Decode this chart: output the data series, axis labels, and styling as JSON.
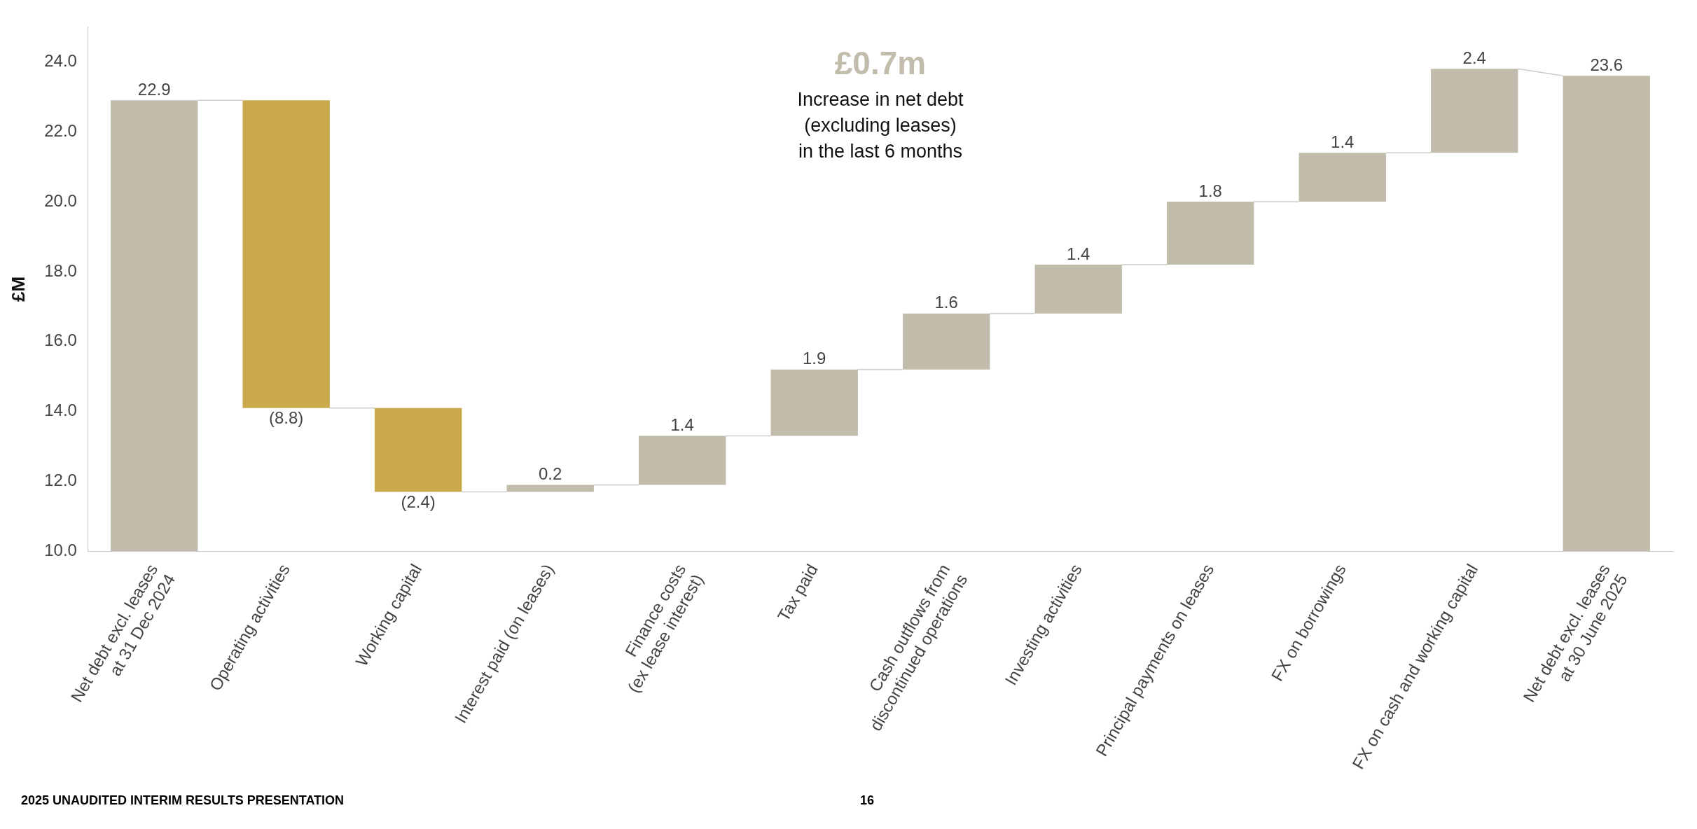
{
  "chart_data": {
    "type": "bar",
    "ylabel": "£M",
    "categories": [
      "Net debt excl. leases\nat 31 Dec 2024",
      "Operating activities",
      "Working capital",
      "Interest paid (on leases)",
      "Finance costs\n(ex lease interest)",
      "Tax paid",
      "Cash outflows from\ndiscontinued operations",
      "Investing activities",
      "Principal payments on leases",
      "FX on borrowings",
      "FX on cash and working capital",
      "Net debt excl. leases\nat 30 June 2025"
    ],
    "base": [
      10,
      22.9,
      14.1,
      11.7,
      11.9,
      13.3,
      15.2,
      16.8,
      18.2,
      20.0,
      21.4,
      10
    ],
    "values": [
      12.9,
      -8.8,
      -2.4,
      0.2,
      1.4,
      1.9,
      1.6,
      1.4,
      1.8,
      1.4,
      2.4,
      13.6
    ],
    "value_labels": [
      "22.9",
      "(8.8)",
      "(2.4)",
      "0.2",
      "1.4",
      "1.9",
      "1.6",
      "1.4",
      "1.8",
      "1.4",
      "2.4",
      "23.6"
    ],
    "colors": [
      "#c2bcad",
      "#cbaa4e",
      "#cbaa4e",
      "#c2bcad",
      "#c2bcad",
      "#c2bcad",
      "#c2bcad",
      "#c2bcad",
      "#c2bcad",
      "#c2bcad",
      "#c2bcad",
      "#c2bcad"
    ],
    "ylim": [
      10,
      25
    ],
    "yticks": [
      {
        "value": 10,
        "label": "10.0"
      },
      {
        "value": 12,
        "label": "12.0"
      },
      {
        "value": 14,
        "label": "14.0"
      },
      {
        "value": 16,
        "label": "16.0"
      },
      {
        "value": 18,
        "label": "18.0"
      },
      {
        "value": 20,
        "label": "20.0"
      },
      {
        "value": 22,
        "label": "22.0"
      },
      {
        "value": 24,
        "label": "24.0"
      }
    ],
    "grid": false,
    "legend": false,
    "annotations": [
      "£0.7m",
      "Increase in net debt\n(excluding leases)\nin the last 6 months",
      "2025 UNAUDITED INTERIM RESULTS PRESENTATION",
      "16"
    ]
  }
}
